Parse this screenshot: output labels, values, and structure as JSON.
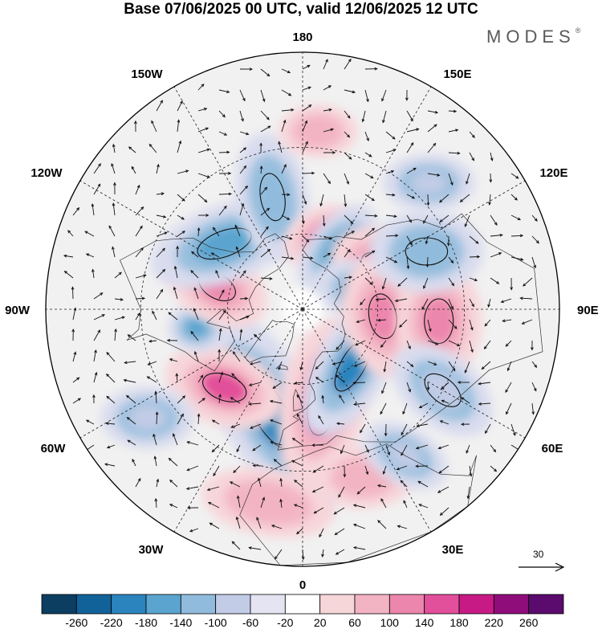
{
  "title": "Base 07/06/2025 00 UTC, valid 12/06/2025 12 UTC",
  "brand": "MODES",
  "brand_mark": "®",
  "longitudes": [
    "180",
    "150E",
    "120E",
    "90E",
    "60E",
    "30E",
    "0",
    "30W",
    "60W",
    "90W",
    "120W",
    "150W"
  ],
  "reference_vector": "30",
  "colorbar": {
    "ticks": [
      "-260",
      "-220",
      "-180",
      "-140",
      "-100",
      "-60",
      "-20",
      "20",
      "60",
      "100",
      "140",
      "180",
      "220",
      "260"
    ],
    "colors": [
      "#0c3e61",
      "#12629a",
      "#2b84bd",
      "#5aa4cf",
      "#91bbdc",
      "#c2cce6",
      "#e4e4f2",
      "#ffffff",
      "#f7d6da",
      "#f2b3c2",
      "#ec86ac",
      "#e24f9a",
      "#c81a85",
      "#8f0c7b",
      "#5b0a6e"
    ]
  },
  "anomalies": [
    {
      "c": "#2b84bd",
      "lon": -18,
      "lat": 48,
      "r": 40,
      "k": 2.4,
      "rot": 60
    },
    {
      "c": "#e24f9a",
      "lon": 12,
      "lat": 52,
      "r": 36,
      "k": 2.0,
      "rot": -80
    },
    {
      "c": "#2b84bd",
      "lon": 42,
      "lat": 60,
      "r": 30,
      "k": 2.2,
      "rot": -60
    },
    {
      "c": "#e24f9a",
      "lon": -45,
      "lat": 47,
      "r": 32,
      "k": 1.6,
      "rot": 20
    },
    {
      "c": "#5aa4cf",
      "lon": -80,
      "lat": 48,
      "r": 20,
      "k": 1.2,
      "rot": 0
    },
    {
      "c": "#ec86ac",
      "lon": -105,
      "lat": 55,
      "r": 30,
      "k": 1.5,
      "rot": 30
    },
    {
      "c": "#5aa4cf",
      "lon": -130,
      "lat": 50,
      "r": 32,
      "k": 2.0,
      "rot": -20
    },
    {
      "c": "#91bbdc",
      "lon": -165,
      "lat": 45,
      "r": 30,
      "k": 1.8,
      "rot": 80
    },
    {
      "c": "#ec86ac",
      "lon": 165,
      "lat": 60,
      "r": 24,
      "k": 1.4,
      "rot": -30
    },
    {
      "c": "#5aa4cf",
      "lon": 150,
      "lat": 62,
      "r": 24,
      "k": 1.8,
      "rot": -50
    },
    {
      "c": "#ec86ac",
      "lon": 120,
      "lat": 55,
      "r": 30,
      "k": 1.4,
      "rot": 20
    },
    {
      "c": "#2b84bd",
      "lon": 105,
      "lat": 63,
      "r": 26,
      "k": 1.8,
      "rot": 10
    },
    {
      "c": "#ec86ac",
      "lon": 85,
      "lat": 58,
      "r": 34,
      "k": 1.5,
      "rot": 80
    },
    {
      "c": "#ec86ac",
      "lon": 85,
      "lat": 38,
      "r": 36,
      "k": 1.4,
      "rot": 90
    },
    {
      "c": "#91bbdc",
      "lon": 115,
      "lat": 38,
      "r": 34,
      "k": 1.4,
      "rot": 0
    },
    {
      "c": "#c2cce6",
      "lon": 60,
      "lat": 30,
      "r": 30,
      "k": 1.6,
      "rot": 40
    },
    {
      "c": "#f2b3c2",
      "lon": 20,
      "lat": 25,
      "r": 26,
      "k": 1.6,
      "rot": 0
    },
    {
      "c": "#c2cce6",
      "lon": 35,
      "lat": 25,
      "r": 24,
      "k": 1.6,
      "rot": 30
    },
    {
      "c": "#f2b3c2",
      "lon": -10,
      "lat": 20,
      "r": 28,
      "k": 2.0,
      "rot": 10
    },
    {
      "c": "#c2cce6",
      "lon": -55,
      "lat": 22,
      "r": 26,
      "k": 1.5,
      "rot": 0
    },
    {
      "c": "#f2b3c2",
      "lon": 175,
      "lat": 25,
      "r": 22,
      "k": 1.5,
      "rot": 0
    },
    {
      "c": "#c2cce6",
      "lon": 135,
      "lat": 25,
      "r": 24,
      "k": 1.6,
      "rot": 0
    }
  ]
}
